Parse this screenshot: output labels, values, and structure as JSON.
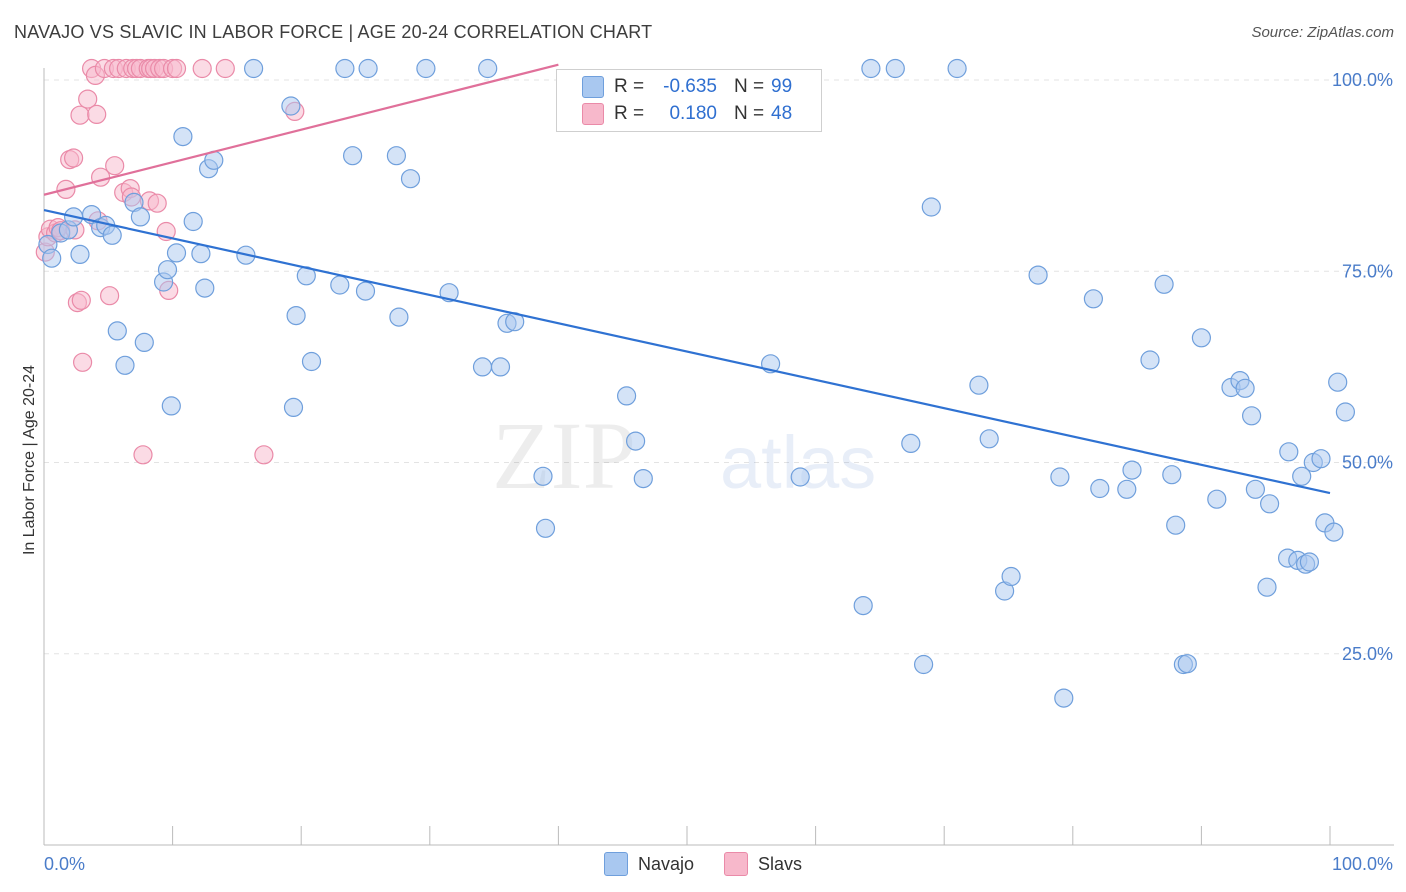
{
  "header": {
    "title": "NAVAJO VS SLAVIC IN LABOR FORCE | AGE 20-24 CORRELATION CHART",
    "source": "Source: ZipAtlas.com"
  },
  "watermark": {
    "zip": "ZIP",
    "atlas": "atlas"
  },
  "colors": {
    "navajo_fill": "#a9c8f0",
    "navajo_stroke": "#6f9fdc",
    "navajo_line": "#2f72d2",
    "slavs_fill": "#f7b8cb",
    "slavs_stroke": "#ea8aa8",
    "slavs_line": "#e0709a",
    "tick_label": "#4a7cc9",
    "grid": "#e3e3e3"
  },
  "legend_box": {
    "rows": [
      {
        "series": "Navajo",
        "r_label": "R =",
        "r_value": "-0.635",
        "n_label": "N =",
        "n_value": "99"
      },
      {
        "series": "Slavs",
        "r_label": "R =",
        "r_value": "0.180",
        "n_label": "N =",
        "n_value": "48"
      }
    ]
  },
  "chart_data": {
    "type": "scatter",
    "title": "NAVAJO VS SLAVIC IN LABOR FORCE | AGE 20-24 CORRELATION CHART",
    "xlabel": "",
    "ylabel": "In Labor Force | Age 20-24",
    "xlim": [
      0,
      100
    ],
    "ylim": [
      0,
      105
    ],
    "x_tick_labels": [
      "0.0%",
      "100.0%"
    ],
    "y_ticks": [
      25,
      50,
      75,
      100
    ],
    "y_tick_labels": [
      "25.0%",
      "50.0%",
      "75.0%",
      "100.0%"
    ],
    "grid": true,
    "legend": "bottom-center",
    "series": [
      {
        "name": "Navajo",
        "trend": {
          "x": [
            0,
            100
          ],
          "y": [
            83.0,
            46.0
          ]
        },
        "points": [
          [
            0.3,
            78.5
          ],
          [
            0.6,
            76.7
          ],
          [
            1.3,
            80.0
          ],
          [
            1.9,
            80.4
          ],
          [
            2.3,
            82.1
          ],
          [
            2.8,
            77.2
          ],
          [
            3.7,
            82.4
          ],
          [
            4.4,
            80.7
          ],
          [
            4.8,
            81.0
          ],
          [
            5.3,
            79.7
          ],
          [
            5.7,
            67.2
          ],
          [
            6.3,
            62.7
          ],
          [
            7.0,
            84.0
          ],
          [
            7.5,
            82.1
          ],
          [
            7.8,
            65.7
          ],
          [
            9.3,
            73.6
          ],
          [
            9.6,
            75.2
          ],
          [
            9.9,
            57.4
          ],
          [
            10.3,
            77.4
          ],
          [
            10.8,
            92.6
          ],
          [
            11.6,
            81.5
          ],
          [
            12.2,
            77.3
          ],
          [
            12.5,
            72.8
          ],
          [
            12.8,
            88.4
          ],
          [
            13.2,
            89.5
          ],
          [
            15.7,
            77.1
          ],
          [
            16.3,
            101.5
          ],
          [
            19.2,
            96.6
          ],
          [
            19.4,
            57.2
          ],
          [
            19.6,
            69.2
          ],
          [
            20.4,
            74.4
          ],
          [
            20.8,
            63.2
          ],
          [
            23.0,
            73.2
          ],
          [
            23.4,
            101.5
          ],
          [
            24.0,
            90.1
          ],
          [
            25.0,
            72.4
          ],
          [
            25.2,
            101.5
          ],
          [
            27.4,
            90.1
          ],
          [
            27.6,
            69.0
          ],
          [
            28.5,
            87.1
          ],
          [
            29.7,
            101.5
          ],
          [
            31.5,
            72.2
          ],
          [
            34.1,
            62.5
          ],
          [
            34.5,
            101.5
          ],
          [
            35.5,
            62.5
          ],
          [
            36.0,
            68.2
          ],
          [
            36.6,
            68.4
          ],
          [
            38.8,
            48.2
          ],
          [
            39.0,
            41.4
          ],
          [
            45.3,
            58.7
          ],
          [
            46.0,
            52.8
          ],
          [
            46.6,
            47.9
          ],
          [
            56.5,
            62.9
          ],
          [
            58.8,
            48.1
          ],
          [
            63.7,
            31.3
          ],
          [
            64.3,
            101.5
          ],
          [
            66.2,
            101.5
          ],
          [
            67.4,
            52.5
          ],
          [
            68.4,
            23.6
          ],
          [
            69.0,
            83.4
          ],
          [
            71.0,
            101.5
          ],
          [
            72.7,
            60.1
          ],
          [
            73.5,
            53.1
          ],
          [
            74.7,
            33.2
          ],
          [
            75.2,
            35.1
          ],
          [
            77.3,
            74.5
          ],
          [
            79.0,
            48.1
          ],
          [
            79.3,
            19.2
          ],
          [
            81.6,
            71.4
          ],
          [
            82.1,
            46.6
          ],
          [
            84.2,
            46.5
          ],
          [
            84.6,
            49.0
          ],
          [
            86.0,
            63.4
          ],
          [
            87.1,
            73.3
          ],
          [
            87.7,
            48.4
          ],
          [
            88.0,
            41.8
          ],
          [
            88.6,
            23.6
          ],
          [
            88.9,
            23.7
          ],
          [
            90.0,
            66.3
          ],
          [
            91.2,
            45.2
          ],
          [
            92.3,
            59.8
          ],
          [
            93.0,
            60.7
          ],
          [
            93.4,
            59.7
          ],
          [
            93.9,
            56.1
          ],
          [
            94.2,
            46.5
          ],
          [
            95.1,
            33.7
          ],
          [
            95.3,
            44.6
          ],
          [
            96.7,
            37.5
          ],
          [
            96.8,
            51.4
          ],
          [
            97.5,
            37.2
          ],
          [
            97.8,
            48.2
          ],
          [
            98.1,
            36.7
          ],
          [
            98.4,
            37.0
          ],
          [
            98.7,
            50.0
          ],
          [
            99.3,
            50.5
          ],
          [
            99.6,
            42.1
          ],
          [
            100.3,
            40.9
          ],
          [
            100.6,
            60.5
          ],
          [
            101.2,
            56.6
          ]
        ]
      },
      {
        "name": "Slavs",
        "trend": {
          "x": [
            0,
            40
          ],
          "y": [
            85.0,
            102.0
          ]
        },
        "points": [
          [
            0.1,
            77.5
          ],
          [
            0.3,
            79.5
          ],
          [
            0.5,
            80.5
          ],
          [
            0.9,
            80.0
          ],
          [
            1.1,
            80.7
          ],
          [
            1.3,
            80.3
          ],
          [
            1.7,
            85.7
          ],
          [
            2.0,
            89.6
          ],
          [
            2.3,
            89.8
          ],
          [
            2.4,
            80.4
          ],
          [
            2.6,
            70.9
          ],
          [
            2.8,
            95.4
          ],
          [
            2.9,
            71.2
          ],
          [
            3.0,
            63.1
          ],
          [
            3.4,
            97.5
          ],
          [
            3.7,
            101.5
          ],
          [
            4.0,
            100.6
          ],
          [
            4.1,
            95.5
          ],
          [
            4.2,
            81.6
          ],
          [
            4.4,
            87.3
          ],
          [
            4.7,
            101.5
          ],
          [
            5.1,
            71.8
          ],
          [
            5.4,
            101.5
          ],
          [
            5.5,
            88.8
          ],
          [
            5.8,
            101.5
          ],
          [
            6.2,
            85.3
          ],
          [
            6.4,
            101.5
          ],
          [
            6.7,
            85.8
          ],
          [
            6.8,
            84.7
          ],
          [
            6.9,
            101.5
          ],
          [
            7.2,
            101.5
          ],
          [
            7.5,
            101.5
          ],
          [
            7.7,
            51.0
          ],
          [
            8.1,
            101.5
          ],
          [
            8.2,
            84.2
          ],
          [
            8.3,
            101.5
          ],
          [
            8.6,
            101.5
          ],
          [
            8.8,
            83.9
          ],
          [
            9.0,
            101.5
          ],
          [
            9.3,
            101.5
          ],
          [
            9.5,
            80.2
          ],
          [
            9.7,
            72.5
          ],
          [
            10.0,
            101.5
          ],
          [
            10.3,
            101.5
          ],
          [
            12.3,
            101.5
          ],
          [
            14.1,
            101.5
          ],
          [
            17.1,
            51.0
          ],
          [
            19.5,
            95.9
          ]
        ]
      }
    ]
  },
  "legend_bottom": [
    {
      "label": "Navajo",
      "color": "#a9c8f0"
    },
    {
      "label": "Slavs",
      "color": "#f7b8cb"
    }
  ]
}
